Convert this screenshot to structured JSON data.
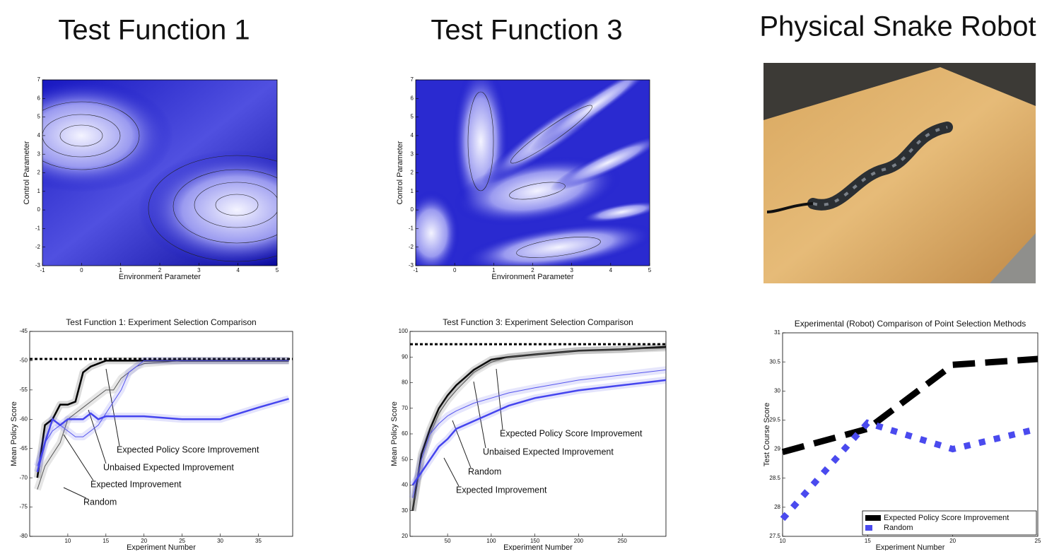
{
  "headings": [
    "Test Function 1",
    "Test Function 3",
    "Physical Snake Robot"
  ],
  "chart_data": [
    {
      "type": "contour",
      "xlabel": "Environment Parameter",
      "ylabel": "Control Parameter",
      "xlim": [
        -1,
        5
      ],
      "ylim": [
        -3,
        7
      ],
      "xticks": [
        -1,
        0,
        1,
        2,
        3,
        4,
        5
      ],
      "yticks": [
        -3,
        -2,
        -1,
        0,
        1,
        2,
        3,
        4,
        5,
        6,
        7
      ]
    },
    {
      "type": "contour",
      "xlabel": "Environment Parameter",
      "ylabel": "Control Parameter",
      "xlim": [
        -1,
        5
      ],
      "ylim": [
        -3,
        7
      ],
      "xticks": [
        -1,
        0,
        1,
        2,
        3,
        4,
        5
      ],
      "yticks": [
        -3,
        -2,
        -1,
        0,
        1,
        2,
        3,
        4,
        5,
        6,
        7
      ]
    },
    {
      "type": "line",
      "title": "Test Function 1: Experiment Selection Comparison",
      "xlabel": "Experiment Number",
      "ylabel": "Mean Policy Score",
      "xlim": [
        5,
        39.5
      ],
      "ylim": [
        -80,
        -45
      ],
      "xticks": [
        10,
        15,
        20,
        25,
        30,
        35
      ],
      "yticks": [
        -80,
        -75,
        -70,
        -65,
        -60,
        -55,
        -50,
        -45
      ],
      "reference": -49.7,
      "x": [
        6,
        7,
        8,
        9,
        10,
        11,
        12,
        13,
        14,
        15,
        16,
        17,
        18,
        19,
        20,
        25,
        30,
        35,
        39
      ],
      "series": [
        {
          "name": "Expected Policy Score Improvement",
          "color": "#000000",
          "width": 2.5,
          "dash": "solid",
          "values": [
            -70,
            -61,
            -60,
            -57.5,
            -57.5,
            -57,
            -52,
            -51,
            -50.5,
            -50,
            -50,
            -50,
            -50,
            -50,
            -50,
            -50,
            -50,
            -50,
            -50
          ]
        },
        {
          "name": "Unbaised Expected Improvement",
          "color": "#555555",
          "width": 1,
          "dash": "solid",
          "values": [
            -72,
            -68,
            -66,
            -64,
            -60,
            -59,
            -58,
            -57,
            -56,
            -55,
            -55,
            -53,
            -52,
            -51,
            -50.5,
            -50,
            -50,
            -50,
            -50
          ]
        },
        {
          "name": "Expected Improvement",
          "color": "#5555ee",
          "width": 1,
          "dash": "solid",
          "values": [
            -68,
            -64,
            -62,
            -61,
            -62,
            -63,
            -63,
            -62,
            -61,
            -59,
            -57,
            -55,
            -52,
            -51,
            -50,
            -50,
            -50,
            -50,
            -50
          ]
        },
        {
          "name": "Random",
          "color": "#4444ee",
          "width": 2.5,
          "dash": "solid",
          "values": [
            -69,
            -64,
            -60,
            -61,
            -60,
            -60,
            -60,
            -59,
            -60,
            -59.5,
            -59.5,
            -59.5,
            -59.5,
            -59.5,
            -59.5,
            -60,
            -60,
            -58,
            -56.5
          ]
        }
      ]
    },
    {
      "type": "line",
      "title": "Test Function 3: Experiment Selection Comparison",
      "xlabel": "Experiment Number",
      "ylabel": "Mean Policy Score",
      "xlim": [
        7,
        300
      ],
      "ylim": [
        20,
        100
      ],
      "xticks": [
        50,
        100,
        150,
        200,
        250
      ],
      "yticks": [
        20,
        30,
        40,
        50,
        60,
        70,
        80,
        90,
        100
      ],
      "reference": 95,
      "x": [
        10,
        20,
        30,
        40,
        50,
        60,
        80,
        100,
        120,
        150,
        200,
        250,
        300
      ],
      "series": [
        {
          "name": "Expected Policy Score Improvement",
          "color": "#000000",
          "width": 2.5,
          "dash": "solid",
          "values": [
            30,
            52,
            62,
            70,
            75,
            79,
            85,
            89,
            90,
            91,
            92.5,
            93,
            94
          ]
        },
        {
          "name": "Unbaised Expected Improvement",
          "color": "#555555",
          "width": 1,
          "dash": "solid",
          "values": [
            30,
            50,
            60,
            68,
            73,
            77,
            84,
            88,
            90,
            91,
            92.5,
            93,
            93.5
          ]
        },
        {
          "name": "Random",
          "color": "#5555ee",
          "width": 1,
          "dash": "solid",
          "values": [
            35,
            50,
            60,
            64,
            67,
            69,
            72,
            74,
            76,
            78,
            81,
            83,
            85
          ]
        },
        {
          "name": "Expected Improvement",
          "color": "#4444ee",
          "width": 2.5,
          "dash": "solid",
          "values": [
            40,
            45,
            50,
            55,
            58,
            62,
            65,
            68,
            71,
            74,
            77,
            79,
            81
          ]
        }
      ]
    },
    {
      "type": "line",
      "title": "Experimental (Robot) Comparison of Point Selection Methods",
      "xlabel": "Experiment Number",
      "ylabel": "Test Course Score",
      "xlim": [
        10,
        25
      ],
      "ylim": [
        27.5,
        31
      ],
      "xticks": [
        10,
        15,
        20,
        25
      ],
      "yticks": [
        27.5,
        28,
        28.5,
        29,
        29.5,
        30,
        30.5,
        31
      ],
      "legend": "lower right",
      "x": [
        10,
        15,
        20,
        25
      ],
      "series": [
        {
          "name": "Expected Policy Score Improvement",
          "color": "#000000",
          "width": 9,
          "dash": "dashed",
          "values": [
            28.95,
            29.35,
            30.45,
            30.55
          ]
        },
        {
          "name": "Random",
          "color": "#4a4aee",
          "width": 9,
          "dash": "dotted",
          "values": [
            27.8,
            29.45,
            29.0,
            29.35
          ]
        }
      ]
    }
  ]
}
